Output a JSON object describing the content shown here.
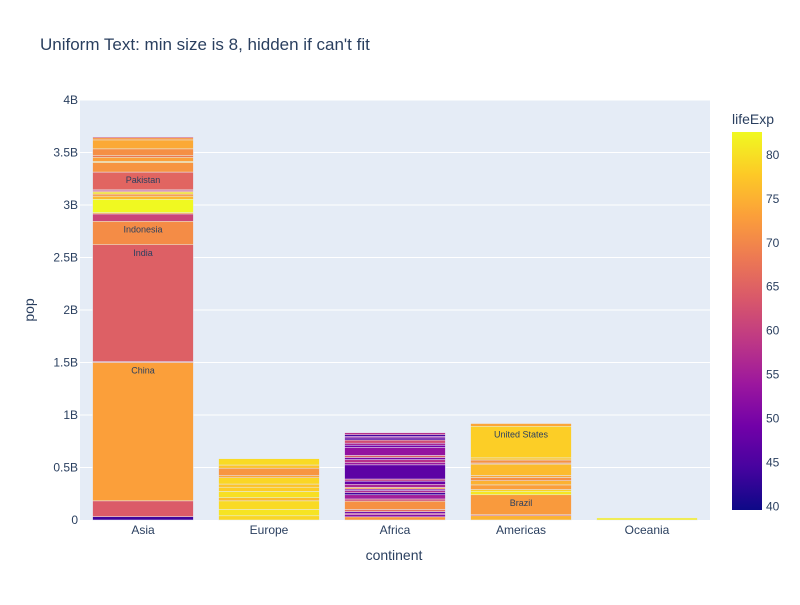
{
  "chart_data": {
    "type": "bar",
    "title": "Uniform Text: min size is 8, hidden if can't fit",
    "xlabel": "continent",
    "ylabel": "pop",
    "categories": [
      "Asia",
      "Europe",
      "Africa",
      "Americas",
      "Oceania"
    ],
    "ylim": [
      0,
      4000000000
    ],
    "yticks": [
      {
        "value": 0,
        "label": "0"
      },
      {
        "value": 500000000,
        "label": "0.5B"
      },
      {
        "value": 1000000000,
        "label": "1B"
      },
      {
        "value": 1500000000,
        "label": "1.5B"
      },
      {
        "value": 2000000000,
        "label": "2B"
      },
      {
        "value": 2500000000,
        "label": "2.5B"
      },
      {
        "value": 3000000000,
        "label": "3B"
      },
      {
        "value": 3500000000,
        "label": "3.5B"
      },
      {
        "value": 4000000000,
        "label": "4B"
      }
    ],
    "grid": true,
    "colorbar": {
      "title": "lifeExp",
      "min": 39.6,
      "max": 82.6,
      "ticks": [
        40,
        45,
        50,
        55,
        60,
        65,
        70,
        75,
        80
      ],
      "colorscale": [
        "#0d0887",
        "#46039f",
        "#7201a8",
        "#9c179e",
        "#bd3786",
        "#d8576b",
        "#ed7953",
        "#fb9f3a",
        "#fdca26",
        "#f0f921"
      ]
    },
    "series": [
      {
        "category": "Asia",
        "segments": [
          {
            "value": 31889923,
            "lifeExp": 43.8
          },
          {
            "value": 150448339,
            "lifeExp": 64.1
          },
          {
            "value": 1318683096,
            "lifeExp": 73.0,
            "label": "China"
          },
          {
            "value": 10000000,
            "lifeExp": 62.0
          },
          {
            "value": 1110396331,
            "lifeExp": 64.7,
            "label": "India"
          },
          {
            "value": 223547000,
            "lifeExp": 70.7,
            "label": "Indonesia"
          },
          {
            "value": 70000000,
            "lifeExp": 61.0
          },
          {
            "value": 12000000,
            "lifeExp": 72.0
          },
          {
            "value": 127467972,
            "lifeExp": 82.6
          },
          {
            "value": 30000000,
            "lifeExp": 76.0
          },
          {
            "value": 20000000,
            "lifeExp": 72.0
          },
          {
            "value": 20000000,
            "lifeExp": 80.0
          },
          {
            "value": 10000000,
            "lifeExp": 66.0
          },
          {
            "value": 10000000,
            "lifeExp": 59.0
          },
          {
            "value": 169270617,
            "lifeExp": 65.5,
            "label": "Pakistan"
          },
          {
            "value": 91077287,
            "lifeExp": 71.7
          },
          {
            "value": 10000000,
            "lifeExp": 78.0
          },
          {
            "value": 40000000,
            "lifeExp": 73.0
          },
          {
            "value": 15000000,
            "lifeExp": 68.0
          },
          {
            "value": 65000000,
            "lifeExp": 71.0
          },
          {
            "value": 85262356,
            "lifeExp": 74.2
          },
          {
            "value": 20000000,
            "lifeExp": 72.0
          },
          {
            "value": 10000000,
            "lifeExp": 62.0
          }
        ]
      },
      {
        "category": "Europe",
        "segments": [
          {
            "value": 40000000,
            "lifeExp": 79.0
          },
          {
            "value": 60000000,
            "lifeExp": 80.5
          },
          {
            "value": 82400996,
            "lifeExp": 79.4
          },
          {
            "value": 30000000,
            "lifeExp": 76.0
          },
          {
            "value": 60000000,
            "lifeExp": 80.0
          },
          {
            "value": 40000000,
            "lifeExp": 78.0
          },
          {
            "value": 30000000,
            "lifeExp": 77.0
          },
          {
            "value": 60000000,
            "lifeExp": 79.0
          },
          {
            "value": 20000000,
            "lifeExp": 74.0
          },
          {
            "value": 71158647,
            "lifeExp": 71.8
          },
          {
            "value": 30000000,
            "lifeExp": 77.0
          },
          {
            "value": 60776238,
            "lifeExp": 79.4
          }
        ]
      },
      {
        "category": "Africa",
        "segments": [
          {
            "value": 30000000,
            "lifeExp": 72.0
          },
          {
            "value": 20000000,
            "lifeExp": 52.0
          },
          {
            "value": 15000000,
            "lifeExp": 58.0
          },
          {
            "value": 15000000,
            "lifeExp": 48.0
          },
          {
            "value": 20000000,
            "lifeExp": 66.0
          },
          {
            "value": 80264543,
            "lifeExp": 71.3
          },
          {
            "value": 20000000,
            "lifeExp": 62.0
          },
          {
            "value": 40000000,
            "lifeExp": 55.0
          },
          {
            "value": 20000000,
            "lifeExp": 44.0
          },
          {
            "value": 20000000,
            "lifeExp": 57.0
          },
          {
            "value": 15000000,
            "lifeExp": 51.0
          },
          {
            "value": 15000000,
            "lifeExp": 73.0
          },
          {
            "value": 30000000,
            "lifeExp": 56.0
          },
          {
            "value": 30000000,
            "lifeExp": 48.0
          },
          {
            "value": 20000000,
            "lifeExp": 60.0
          },
          {
            "value": 135031164,
            "lifeExp": 46.9
          },
          {
            "value": 20000000,
            "lifeExp": 54.0
          },
          {
            "value": 30000000,
            "lifeExp": 58.0
          },
          {
            "value": 20000000,
            "lifeExp": 50.0
          },
          {
            "value": 20000000,
            "lifeExp": 64.0
          },
          {
            "value": 76511887,
            "lifeExp": 52.9
          },
          {
            "value": 20000000,
            "lifeExp": 49.0
          },
          {
            "value": 20000000,
            "lifeExp": 56.0
          },
          {
            "value": 30000000,
            "lifeExp": 62.0
          },
          {
            "value": 20000000,
            "lifeExp": 46.0
          },
          {
            "value": 15000000,
            "lifeExp": 52.0
          },
          {
            "value": 15000000,
            "lifeExp": 44.0
          },
          {
            "value": 20000000,
            "lifeExp": 58.0
          }
        ]
      },
      {
        "category": "Americas",
        "segments": [
          {
            "value": 40301927,
            "lifeExp": 75.3
          },
          {
            "value": 10000000,
            "lifeExp": 65.0
          },
          {
            "value": 190010647,
            "lifeExp": 72.4,
            "label": "Brazil"
          },
          {
            "value": 33390141,
            "lifeExp": 80.7
          },
          {
            "value": 16284741,
            "lifeExp": 78.6
          },
          {
            "value": 44227550,
            "lifeExp": 72.9
          },
          {
            "value": 40000000,
            "lifeExp": 75.0
          },
          {
            "value": 30000000,
            "lifeExp": 71.0
          },
          {
            "value": 20000000,
            "lifeExp": 74.0
          },
          {
            "value": 108700891,
            "lifeExp": 76.2
          },
          {
            "value": 10000000,
            "lifeExp": 70.0
          },
          {
            "value": 28674757,
            "lifeExp": 71.4
          },
          {
            "value": 20000000,
            "lifeExp": 77.0
          },
          {
            "value": 301139947,
            "lifeExp": 78.2,
            "label": "United States"
          },
          {
            "value": 26084662,
            "lifeExp": 73.7
          }
        ]
      },
      {
        "category": "Oceania",
        "segments": [
          {
            "value": 20434176,
            "lifeExp": 81.2
          },
          {
            "value": 4115771,
            "lifeExp": 80.2
          }
        ]
      }
    ]
  }
}
